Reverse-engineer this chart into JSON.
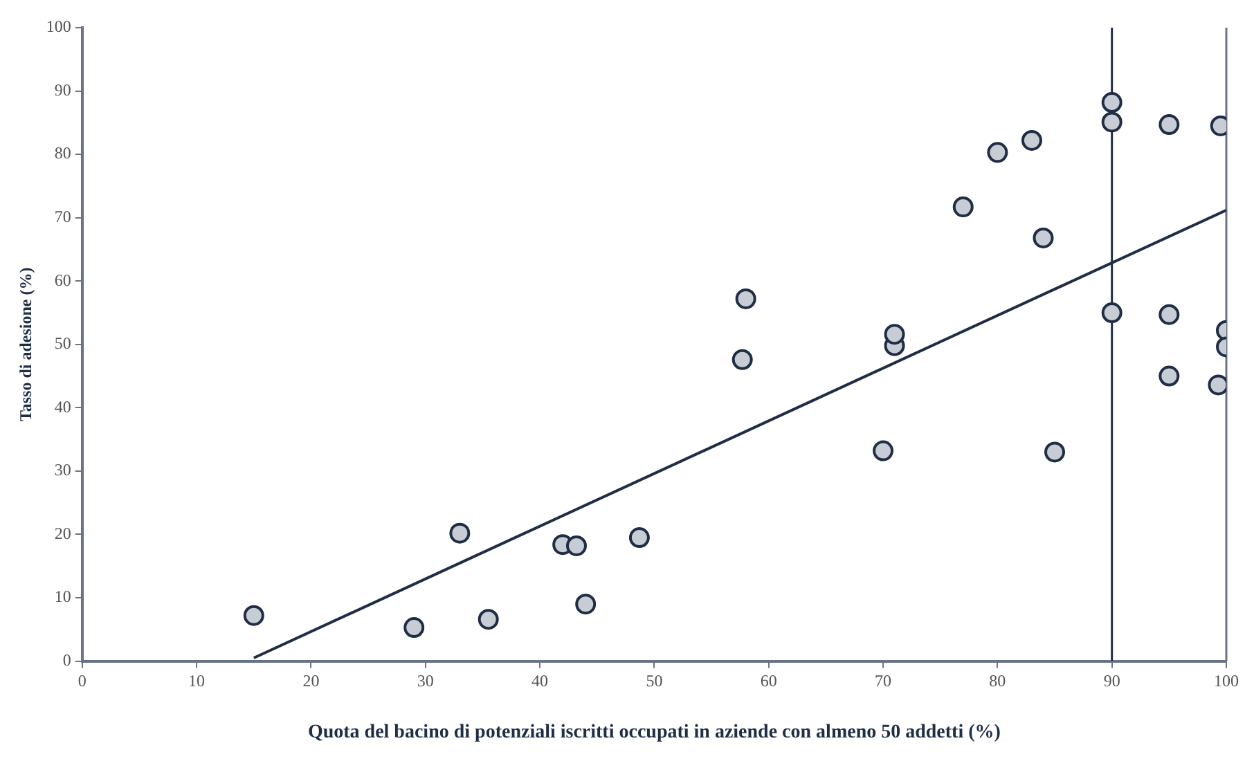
{
  "chart_data": {
    "type": "scatter",
    "xlabel": "Quota del bacino di potenziali iscritti occupati in aziende con almeno 50 addetti (%)",
    "ylabel": "Tasso di adesione (%)",
    "xlim": [
      0,
      100
    ],
    "xticks": [
      0,
      10,
      20,
      30,
      40,
      50,
      60,
      70,
      80,
      90,
      100
    ],
    "ylim": [
      0,
      100
    ],
    "yticks": [
      0,
      10,
      20,
      30,
      40,
      50,
      60,
      70,
      80,
      90,
      100
    ],
    "grid": false,
    "legend": false,
    "series": [
      {
        "marker": "circle",
        "color": "#c8ccd4",
        "x": [
          15,
          29,
          33,
          35.5,
          42,
          42.8,
          43.2,
          44,
          48.7,
          57.7,
          58,
          70,
          71,
          71,
          77,
          80,
          83,
          84,
          85,
          90,
          90,
          90,
          95,
          95,
          95,
          99.5,
          99.3,
          100,
          100
        ],
        "values": [
          7.2,
          5.3,
          20.2,
          6.6,
          18.4,
          null,
          18.2,
          9,
          19.5,
          47.6,
          57.2,
          33.2,
          49.8,
          51.6,
          71.7,
          80.3,
          82.2,
          66.8,
          33,
          88.2,
          85.1,
          55,
          84.7,
          54.7,
          45,
          84.5,
          43.6,
          52.2,
          49.6
        ]
      },
      {
        "type": "line",
        "marker": "none",
        "color": "#1f2d45",
        "x": [
          15,
          100
        ],
        "values": [
          0.5,
          71.2
        ]
      }
    ],
    "ref_lines": [
      {
        "axis": "x",
        "value": 90,
        "color": "#1f2d45"
      }
    ]
  }
}
